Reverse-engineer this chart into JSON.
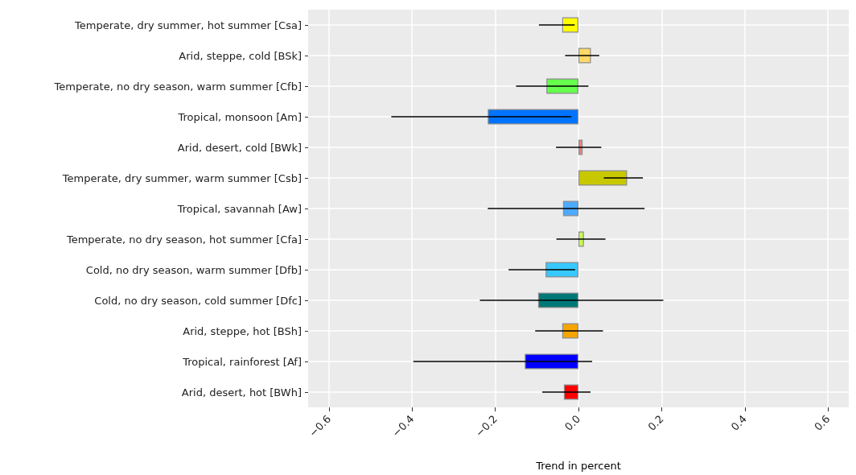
{
  "chart_data": {
    "type": "bar",
    "orientation": "horizontal",
    "xlabel": "Trend in percent",
    "categories": [
      "Temperate, dry summer, hot summer [Csa]",
      "Arid, steppe, cold [BSk]",
      "Temperate, no dry season, warm summer [Cfb]",
      "Tropical, monsoon [Am]",
      "Arid, desert, cold [BWk]",
      "Temperate, dry summer, warm summer [Csb]",
      "Tropical, savannah [Aw]",
      "Temperate, no dry season, hot summer [Cfa]",
      "Cold, no dry season, warm summer [Dfb]",
      "Cold, no dry season, cold summer [Dfc]",
      "Arid, steppe, hot [BSh]",
      "Tropical, rainforest [Af]",
      "Arid, desert, hot [BWh]"
    ],
    "values": [
      -0.039,
      0.03,
      -0.077,
      -0.218,
      0.01,
      0.117,
      -0.037,
      0.013,
      -0.079,
      -0.097,
      -0.039,
      -0.129,
      -0.035
    ],
    "colors": [
      "#ffff00",
      "#ffd966",
      "#66ff4d",
      "#0073ff",
      "#f08080",
      "#c8c800",
      "#4daaff",
      "#c8ff50",
      "#37c8ff",
      "#007878",
      "#f5a500",
      "#0000ff",
      "#ff0000"
    ],
    "errors": [
      [
        -0.095,
        -0.009
      ],
      [
        -0.032,
        0.05
      ],
      [
        -0.15,
        0.024
      ],
      [
        -0.45,
        -0.017
      ],
      [
        -0.054,
        0.055
      ],
      [
        0.061,
        0.155
      ],
      [
        -0.218,
        0.159
      ],
      [
        -0.053,
        0.065
      ],
      [
        -0.168,
        -0.008
      ],
      [
        -0.237,
        0.204
      ],
      [
        -0.104,
        0.059
      ],
      [
        -0.397,
        0.033
      ],
      [
        -0.087,
        0.029
      ]
    ],
    "xlim": [
      -0.65,
      0.65
    ],
    "xticks": [
      {
        "value": -0.6,
        "label": "−0.6"
      },
      {
        "value": -0.4,
        "label": "−0.4"
      },
      {
        "value": -0.2,
        "label": "−0.2"
      },
      {
        "value": 0,
        "label": "0.0"
      },
      {
        "value": 0.2,
        "label": "0.2"
      },
      {
        "value": 0.4,
        "label": "0.4"
      },
      {
        "value": 0.6,
        "label": "0.6"
      }
    ],
    "grid": true
  }
}
